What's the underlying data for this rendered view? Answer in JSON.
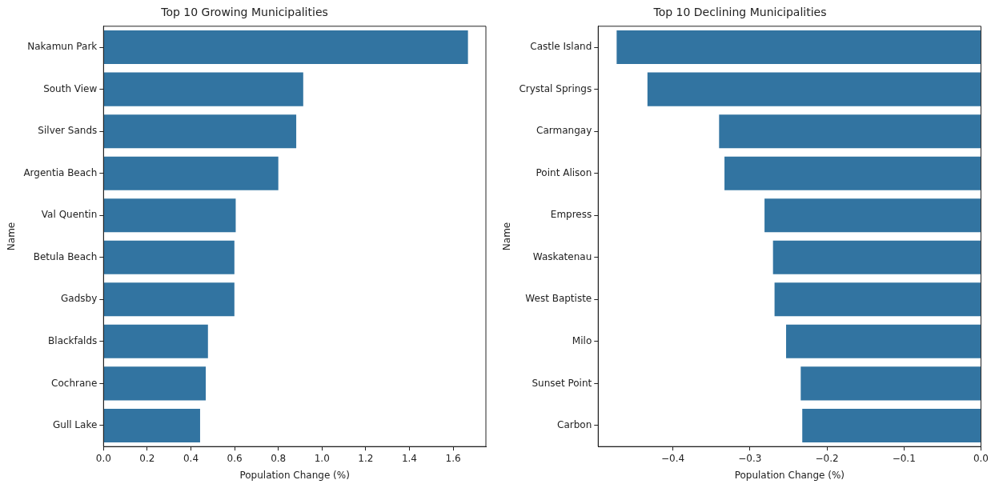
{
  "chart_data": [
    {
      "type": "bar",
      "orientation": "horizontal",
      "title": "Top 10 Growing Municipalities",
      "xlabel": "Population Change (%)",
      "ylabel": "Name",
      "categories": [
        "Nakamun Park",
        "South View",
        "Silver Sands",
        "Argentia Beach",
        "Val Quentin",
        "Betula Beach",
        "Gadsby",
        "Blackfalds",
        "Cochrane",
        "Gull Lake"
      ],
      "values": [
        1.668,
        0.914,
        0.882,
        0.8,
        0.605,
        0.599,
        0.599,
        0.478,
        0.468,
        0.442
      ],
      "color": "#3274a1",
      "xlim": [
        0,
        1.75
      ],
      "xticks": [
        {
          "value": 0,
          "label": "0.0"
        },
        0.2,
        0.4,
        0.6,
        0.8,
        {
          "value": 1,
          "label": "1.0"
        },
        1.2,
        1.4,
        1.6
      ],
      "grid": false,
      "legend": false
    },
    {
      "type": "bar",
      "orientation": "horizontal",
      "title": "Top 10 Declining Municipalities",
      "xlabel": "Population Change (%)",
      "ylabel": "Name",
      "categories": [
        "Castle Island",
        "Crystal Springs",
        "Carmangay",
        "Point Alison",
        "Empress",
        "Waskatenau",
        "West Baptiste",
        "Milo",
        "Sunset Point",
        "Carbon"
      ],
      "values": [
        -0.473,
        -0.433,
        -0.34,
        -0.333,
        -0.281,
        -0.27,
        -0.268,
        -0.253,
        -0.234,
        -0.232
      ],
      "color": "#3274a1",
      "xlim": [
        -0.497,
        0
      ],
      "xticks": [
        {
          "value": -0.4,
          "label": "−0.4"
        },
        {
          "value": -0.3,
          "label": "−0.3"
        },
        {
          "value": -0.2,
          "label": "−0.2"
        },
        {
          "value": -0.1,
          "label": "−0.1"
        },
        {
          "value": 0,
          "label": "0.0"
        }
      ],
      "grid": false,
      "legend": false
    }
  ]
}
